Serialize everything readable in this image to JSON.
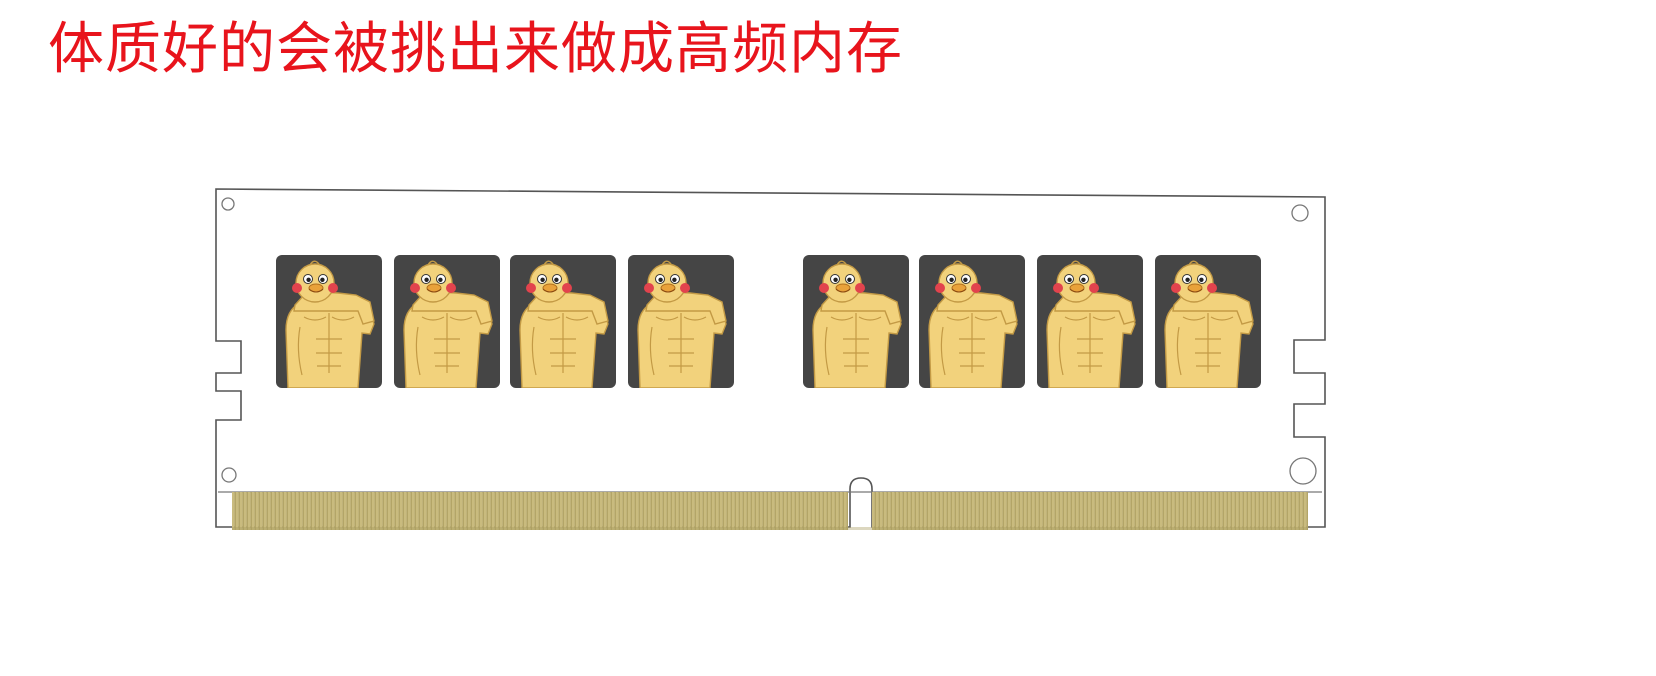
{
  "title": "体质好的会被挑出来做成高频内存",
  "colors": {
    "title": "#e8141c",
    "pcb_outline": "#555555",
    "chip_bg": "#454545",
    "character_skin": "#f2d27c",
    "gold_fingers": "#c9bb7e"
  },
  "chips": {
    "left_group": 4,
    "right_group": 4,
    "icon": "muscular-chick-character-icon"
  }
}
